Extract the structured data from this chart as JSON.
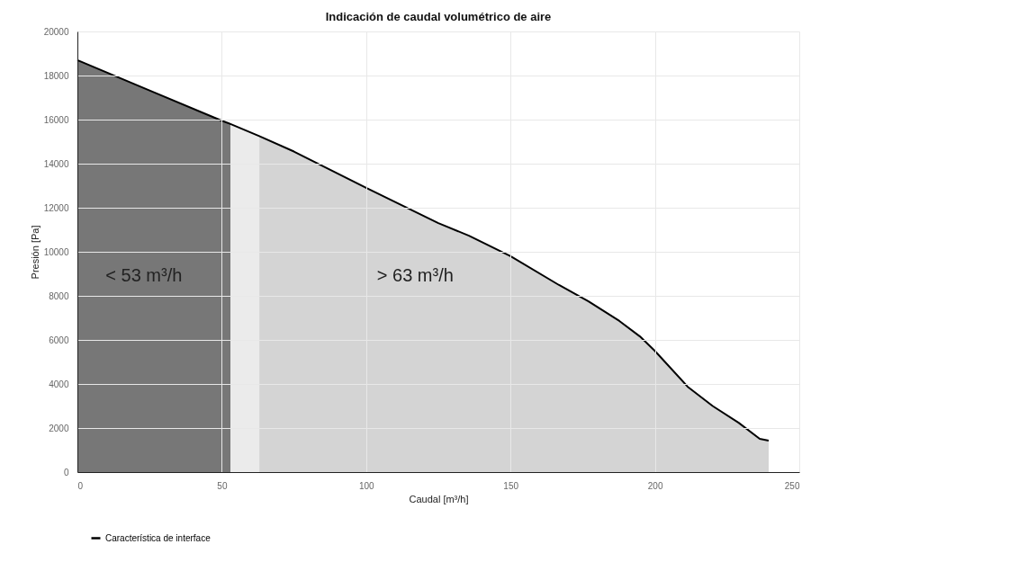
{
  "chart_data": {
    "type": "line",
    "title": "Indicación de caudal volumétrico de aire",
    "xlabel": "Caudal  [m³/h]",
    "ylabel": "Presión  [Pa]",
    "xlim": [
      0,
      250
    ],
    "xticks": [
      0,
      50,
      100,
      150,
      200,
      250
    ],
    "ylim": [
      0,
      20000
    ],
    "yticks": [
      0,
      2000,
      4000,
      6000,
      8000,
      10000,
      12000,
      14000,
      16000,
      18000,
      20000
    ],
    "grid": true,
    "legend": "bottom",
    "series": [
      {
        "type": "area",
        "color": "#777777",
        "x": [
          0,
          25,
          50,
          53
        ],
        "values": [
          18700,
          17320,
          15950,
          15800
        ]
      },
      {
        "type": "area",
        "color": "#ebebeb",
        "x": [
          53,
          63
        ],
        "values": [
          15800,
          15250
        ]
      },
      {
        "type": "area",
        "color": "#d4d4d4",
        "x": [
          63,
          75,
          100,
          125,
          135.6,
          150,
          166.8,
          177,
          187.7,
          194.8,
          200,
          211.3,
          220,
          229,
          236.3,
          239.4
        ],
        "values": [
          15250,
          14550,
          12900,
          11300,
          10730,
          9800,
          8490,
          7750,
          6860,
          6160,
          5500,
          3880,
          3000,
          2240,
          1510,
          1430
        ]
      },
      {
        "name": "Característica de interface",
        "color": "#000000",
        "x": [
          0,
          25,
          50,
          53,
          63,
          75,
          100,
          125,
          135.6,
          150,
          166.8,
          177,
          187.7,
          194.8,
          200,
          211.3,
          220,
          229,
          236.3,
          239.4
        ],
        "values": [
          18700,
          17320,
          15950,
          15800,
          15250,
          14550,
          12900,
          11300,
          10730,
          9800,
          8490,
          7750,
          6860,
          6160,
          5500,
          3880,
          3000,
          2240,
          1510,
          1430
        ]
      }
    ],
    "annotations": [
      "< 53 m³/h",
      "> 63 m³/h"
    ]
  }
}
